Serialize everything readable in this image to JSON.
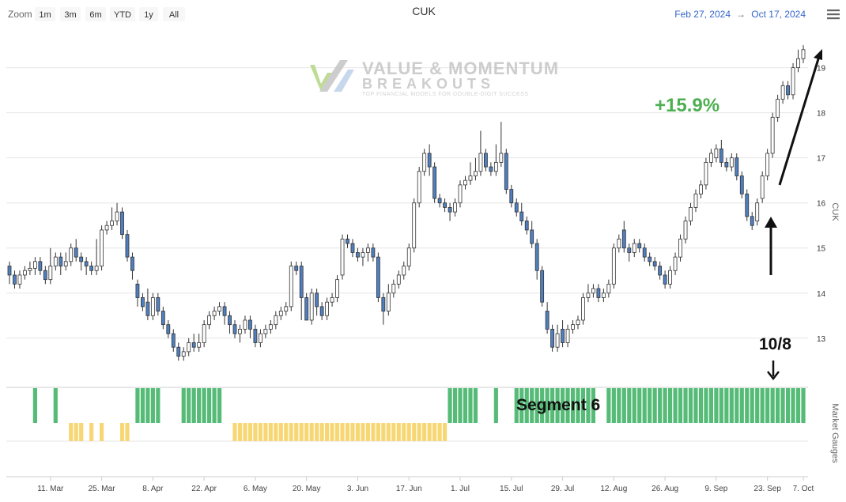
{
  "toolbar": {
    "zoom_label": "Zoom",
    "buttons": [
      "1m",
      "3m",
      "6m",
      "YTD",
      "1y",
      "All"
    ],
    "range_from": "Feb 27, 2024",
    "range_arrow": "→",
    "range_to": "Oct 17, 2024",
    "menu_icon": "hamburger-menu-icon"
  },
  "watermark": {
    "line1": "VALUE & MOMENTUM",
    "line2": "BREAKOUTS",
    "tagline": "TOP FINANCIAL MODELS FOR DOUBLE-DIGIT SUCCESS"
  },
  "annotations": {
    "gain": "+15.9%",
    "segment": "Segment 6",
    "date": "10/8"
  },
  "colors": {
    "up_fill": "#ffffff",
    "down_fill": "#4f7fbf",
    "gauge_green": "#55bb77",
    "gauge_yellow": "#f7d774",
    "gain_text": "#4caf50"
  },
  "chart_data": {
    "type": "candlestick",
    "title": "CUK",
    "ylabel": "CUK",
    "lower_panel_label": "Market Gauges",
    "ylim": [
      12.4,
      19.8
    ],
    "yticks": [
      13,
      14,
      15,
      16,
      17,
      18,
      19
    ],
    "x_ticks": [
      "11. Mar",
      "25. Mar",
      "8. Apr",
      "22. Apr",
      "6. May",
      "20. May",
      "3. Jun",
      "17. Jun",
      "1. Jul",
      "15. Jul",
      "29. Jul",
      "12. Aug",
      "26. Aug",
      "9. Sep",
      "23. Sep",
      "7. Oct"
    ],
    "candles": [
      [
        14.6,
        14.4,
        14.7,
        14.2
      ],
      [
        14.4,
        14.2,
        14.5,
        14.1
      ],
      [
        14.2,
        14.4,
        14.5,
        14.1
      ],
      [
        14.4,
        14.5,
        14.6,
        14.3
      ],
      [
        14.5,
        14.55,
        14.7,
        14.4
      ],
      [
        14.55,
        14.7,
        14.8,
        14.4
      ],
      [
        14.7,
        14.5,
        14.8,
        14.4
      ],
      [
        14.5,
        14.3,
        14.6,
        14.2
      ],
      [
        14.3,
        14.6,
        15.0,
        14.2
      ],
      [
        14.6,
        14.8,
        14.9,
        14.5
      ],
      [
        14.8,
        14.6,
        14.9,
        14.4
      ],
      [
        14.6,
        14.7,
        14.9,
        14.5
      ],
      [
        14.7,
        15.0,
        15.1,
        14.6
      ],
      [
        15.0,
        14.8,
        15.2,
        14.7
      ],
      [
        14.8,
        14.7,
        14.9,
        14.5
      ],
      [
        14.7,
        14.6,
        14.8,
        14.4
      ],
      [
        14.6,
        14.5,
        14.7,
        14.4
      ],
      [
        14.5,
        14.6,
        15.2,
        14.4
      ],
      [
        14.6,
        15.4,
        15.5,
        14.5
      ],
      [
        15.4,
        15.5,
        15.6,
        15.3
      ],
      [
        15.5,
        15.6,
        15.9,
        15.4
      ],
      [
        15.6,
        15.8,
        16.0,
        15.5
      ],
      [
        15.8,
        15.3,
        15.9,
        15.2
      ],
      [
        15.3,
        14.8,
        15.4,
        14.7
      ],
      [
        14.8,
        14.5,
        14.9,
        14.3
      ],
      [
        14.2,
        13.9,
        14.3,
        13.7
      ],
      [
        13.9,
        13.7,
        14.0,
        13.6
      ],
      [
        13.8,
        13.5,
        14.1,
        13.4
      ],
      [
        13.5,
        13.9,
        14.0,
        13.4
      ],
      [
        13.9,
        13.6,
        14.0,
        13.5
      ],
      [
        13.6,
        13.3,
        13.7,
        13.2
      ],
      [
        13.3,
        13.1,
        13.4,
        13.0
      ],
      [
        13.1,
        12.8,
        13.2,
        12.7
      ],
      [
        12.8,
        12.6,
        12.9,
        12.5
      ],
      [
        12.6,
        12.7,
        12.8,
        12.5
      ],
      [
        12.7,
        12.9,
        13.0,
        12.6
      ],
      [
        12.9,
        12.8,
        13.1,
        12.7
      ],
      [
        12.8,
        12.9,
        13.1,
        12.7
      ],
      [
        12.9,
        13.3,
        13.4,
        12.8
      ],
      [
        13.3,
        13.5,
        13.6,
        13.2
      ],
      [
        13.5,
        13.6,
        13.7,
        13.4
      ],
      [
        13.6,
        13.7,
        13.8,
        13.5
      ],
      [
        13.7,
        13.5,
        13.8,
        13.3
      ],
      [
        13.5,
        13.3,
        13.6,
        13.1
      ],
      [
        13.3,
        13.1,
        13.4,
        13.0
      ],
      [
        13.1,
        13.2,
        13.3,
        12.9
      ],
      [
        13.2,
        13.4,
        13.5,
        13.1
      ],
      [
        13.4,
        13.2,
        13.5,
        13.0
      ],
      [
        13.2,
        12.9,
        13.3,
        12.8
      ],
      [
        12.9,
        13.1,
        13.2,
        12.8
      ],
      [
        13.1,
        13.2,
        13.3,
        13.0
      ],
      [
        13.2,
        13.3,
        13.4,
        13.1
      ],
      [
        13.3,
        13.5,
        13.6,
        13.2
      ],
      [
        13.5,
        13.6,
        13.7,
        13.4
      ],
      [
        13.6,
        13.7,
        13.8,
        13.5
      ],
      [
        13.7,
        14.6,
        14.7,
        13.6
      ],
      [
        14.6,
        14.5,
        14.7,
        14.4
      ],
      [
        14.6,
        13.9,
        14.7,
        13.4
      ],
      [
        13.9,
        13.4,
        14.0,
        13.4
      ],
      [
        13.4,
        14.0,
        14.1,
        13.3
      ],
      [
        14.0,
        13.7,
        14.1,
        13.5
      ],
      [
        13.7,
        13.5,
        13.8,
        13.4
      ],
      [
        13.5,
        13.8,
        13.9,
        13.4
      ],
      [
        13.8,
        13.9,
        14.0,
        13.7
      ],
      [
        13.9,
        14.3,
        14.4,
        13.8
      ],
      [
        14.4,
        15.2,
        15.3,
        14.3
      ],
      [
        15.2,
        15.1,
        15.3,
        15.0
      ],
      [
        15.1,
        14.9,
        15.2,
        14.8
      ],
      [
        14.9,
        14.8,
        15.0,
        14.7
      ],
      [
        14.8,
        14.9,
        15.0,
        14.6
      ],
      [
        14.9,
        15.0,
        15.1,
        14.7
      ],
      [
        15.0,
        14.8,
        15.1,
        14.7
      ],
      [
        14.8,
        13.9,
        14.9,
        13.8
      ],
      [
        13.9,
        13.6,
        14.0,
        13.3
      ],
      [
        13.6,
        14.0,
        14.2,
        13.5
      ],
      [
        14.0,
        14.2,
        14.3,
        13.9
      ],
      [
        14.2,
        14.4,
        14.5,
        14.1
      ],
      [
        14.4,
        14.6,
        14.7,
        14.3
      ],
      [
        14.6,
        15.0,
        15.1,
        14.5
      ],
      [
        15.0,
        16.0,
        16.1,
        14.9
      ],
      [
        16.0,
        16.7,
        16.8,
        15.9
      ],
      [
        16.7,
        17.1,
        17.2,
        16.6
      ],
      [
        17.1,
        16.8,
        17.3,
        16.6
      ],
      [
        16.8,
        16.1,
        16.9,
        16.0
      ],
      [
        16.1,
        16.0,
        16.2,
        15.9
      ],
      [
        16.0,
        15.9,
        16.1,
        15.8
      ],
      [
        15.9,
        15.8,
        16.0,
        15.6
      ],
      [
        15.8,
        16.0,
        16.1,
        15.7
      ],
      [
        16.0,
        16.4,
        16.5,
        15.9
      ],
      [
        16.4,
        16.5,
        16.6,
        16.3
      ],
      [
        16.5,
        16.6,
        16.9,
        16.4
      ],
      [
        16.6,
        16.7,
        17.0,
        16.5
      ],
      [
        16.7,
        17.1,
        17.6,
        16.6
      ],
      [
        17.1,
        16.8,
        17.2,
        16.7
      ],
      [
        16.8,
        16.7,
        16.9,
        16.6
      ],
      [
        16.7,
        16.9,
        17.3,
        16.6
      ],
      [
        16.9,
        17.1,
        17.8,
        16.8
      ],
      [
        17.1,
        16.3,
        17.2,
        16.2
      ],
      [
        16.3,
        16.0,
        16.4,
        15.9
      ],
      [
        16.0,
        15.8,
        16.1,
        15.7
      ],
      [
        15.8,
        15.6,
        16.0,
        15.5
      ],
      [
        15.6,
        15.4,
        15.7,
        15.3
      ],
      [
        15.4,
        15.1,
        15.6,
        15.0
      ],
      [
        15.1,
        14.5,
        15.2,
        14.3
      ],
      [
        14.5,
        13.8,
        14.6,
        13.7
      ],
      [
        13.6,
        13.2,
        13.8,
        13.1
      ],
      [
        13.2,
        12.8,
        13.3,
        12.7
      ],
      [
        12.8,
        13.1,
        13.3,
        12.7
      ],
      [
        13.2,
        12.9,
        13.4,
        12.8
      ],
      [
        12.9,
        13.2,
        13.3,
        12.8
      ],
      [
        13.2,
        13.3,
        13.4,
        13.1
      ],
      [
        13.3,
        13.4,
        13.5,
        13.2
      ],
      [
        13.4,
        13.9,
        14.0,
        13.3
      ],
      [
        13.9,
        14.0,
        14.2,
        13.8
      ],
      [
        14.0,
        14.1,
        14.2,
        13.9
      ],
      [
        14.1,
        13.9,
        14.2,
        13.8
      ],
      [
        13.9,
        14.0,
        14.1,
        13.8
      ],
      [
        14.0,
        14.2,
        14.3,
        13.9
      ],
      [
        14.2,
        15.0,
        15.1,
        14.1
      ],
      [
        15.0,
        15.2,
        15.3,
        14.9
      ],
      [
        15.4,
        15.0,
        15.6,
        14.9
      ],
      [
        15.0,
        14.9,
        15.1,
        14.7
      ],
      [
        14.9,
        15.1,
        15.2,
        14.8
      ],
      [
        15.1,
        15.0,
        15.2,
        14.9
      ],
      [
        15.0,
        14.8,
        15.1,
        14.7
      ],
      [
        14.8,
        14.7,
        14.9,
        14.6
      ],
      [
        14.7,
        14.6,
        14.8,
        14.5
      ],
      [
        14.6,
        14.4,
        14.7,
        14.3
      ],
      [
        14.4,
        14.2,
        14.5,
        14.1
      ],
      [
        14.2,
        14.5,
        14.6,
        14.1
      ],
      [
        14.5,
        14.8,
        14.9,
        14.4
      ],
      [
        14.8,
        15.2,
        15.3,
        14.7
      ],
      [
        15.2,
        15.6,
        15.7,
        15.1
      ],
      [
        15.6,
        15.9,
        16.0,
        15.5
      ],
      [
        15.9,
        16.2,
        16.3,
        15.8
      ],
      [
        16.2,
        16.4,
        16.5,
        16.1
      ],
      [
        16.4,
        16.9,
        17.0,
        16.3
      ],
      [
        16.9,
        17.1,
        17.2,
        16.8
      ],
      [
        17.0,
        17.2,
        17.3,
        16.9
      ],
      [
        17.2,
        16.9,
        17.4,
        16.8
      ],
      [
        16.9,
        16.8,
        17.0,
        16.7
      ],
      [
        16.8,
        17.0,
        17.1,
        16.7
      ],
      [
        17.0,
        16.6,
        17.1,
        16.5
      ],
      [
        16.6,
        16.2,
        16.7,
        16.1
      ],
      [
        16.2,
        15.7,
        16.3,
        15.6
      ],
      [
        15.7,
        15.5,
        15.8,
        15.4
      ],
      [
        15.6,
        16.0,
        16.1,
        15.5
      ],
      [
        16.1,
        16.6,
        16.7,
        16.0
      ],
      [
        16.6,
        17.1,
        17.2,
        16.5
      ],
      [
        17.1,
        17.9,
        18.0,
        17.0
      ],
      [
        17.9,
        18.3,
        18.4,
        17.8
      ],
      [
        18.3,
        18.6,
        18.7,
        18.2
      ],
      [
        18.6,
        18.4,
        18.7,
        18.3
      ],
      [
        18.4,
        19.0,
        19.1,
        18.3
      ],
      [
        19.0,
        19.2,
        19.4,
        18.9
      ],
      [
        19.2,
        19.4,
        19.5,
        19.1
      ]
    ],
    "gauges": [
      0,
      0,
      0,
      0,
      0,
      1,
      0,
      0,
      0,
      1,
      0,
      0,
      -1,
      -1,
      -1,
      0,
      -1,
      0,
      -1,
      0,
      0,
      0,
      -1,
      -1,
      0,
      1,
      1,
      1,
      1,
      1,
      0,
      0,
      0,
      0,
      1,
      1,
      1,
      1,
      1,
      1,
      1,
      1,
      0,
      0,
      -1,
      -1,
      -1,
      -1,
      -1,
      -1,
      -1,
      -1,
      -1,
      -1,
      -1,
      -1,
      -1,
      -1,
      -1,
      -1,
      -1,
      -1,
      -1,
      -1,
      -1,
      -1,
      -1,
      -1,
      -1,
      -1,
      -1,
      -1,
      -1,
      -1,
      -1,
      -1,
      -1,
      -1,
      -1,
      -1,
      -1,
      -1,
      -1,
      -1,
      -1,
      -1,
      1,
      1,
      1,
      1,
      1,
      1,
      0,
      0,
      0,
      1,
      0,
      0,
      0,
      1,
      1,
      1,
      1,
      1,
      1,
      1,
      1,
      1,
      1,
      1,
      1,
      1,
      1,
      1,
      1,
      0,
      0,
      1,
      1,
      1,
      1,
      1,
      1,
      1,
      1,
      1,
      1,
      1,
      1,
      1,
      1,
      1,
      1,
      1,
      1,
      1,
      1,
      1,
      1,
      1,
      1,
      1,
      1,
      1,
      1,
      1,
      1,
      1,
      1,
      1,
      1,
      1,
      1,
      1,
      1,
      1
    ]
  }
}
